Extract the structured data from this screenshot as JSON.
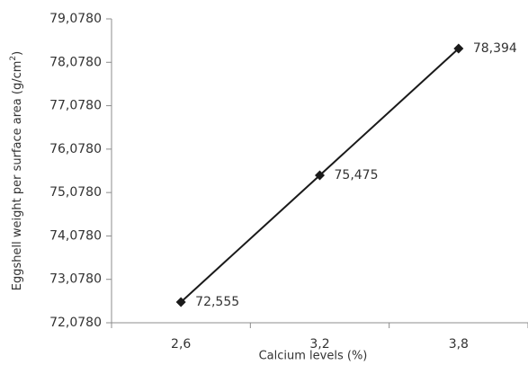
{
  "chart_data": {
    "type": "line",
    "title": "",
    "xlabel": "Calcium levels (%)",
    "ylabel_main": "Eggshell weight per surface area (g/cm",
    "ylabel_sup": "2",
    "ylabel_end": ")",
    "categories": [
      "2,6",
      "3,2",
      "3,8"
    ],
    "series": [
      {
        "values": [
          72.555,
          75.475,
          78.394
        ],
        "labels": [
          "72,555",
          "75,475",
          "78,394"
        ]
      }
    ],
    "ylim": [
      72.078,
      79.078
    ],
    "yticks": [
      72.078,
      73.078,
      74.078,
      75.078,
      76.078,
      77.078,
      78.078,
      79.078
    ],
    "ytick_labels": [
      "72,0780",
      "73,0780",
      "74,0780",
      "75,0780",
      "76,0780",
      "77,0780",
      "78,0780",
      "79,0780"
    ],
    "marker": "diamond",
    "line_color": "#1a1a1a",
    "axis_color": "#8c8c8c",
    "grid": false,
    "legend": "none"
  }
}
